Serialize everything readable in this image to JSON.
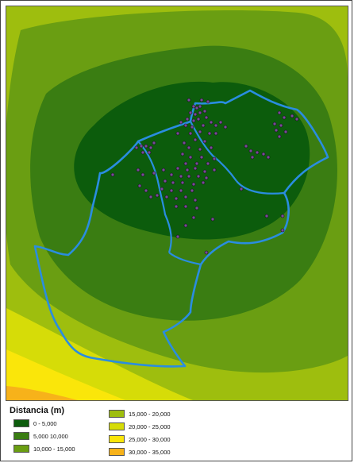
{
  "legend": {
    "title": "Distancia (m)",
    "classes": [
      {
        "label": "0 - 5,000",
        "color": "#0c5c0c"
      },
      {
        "label": "5,000   10,000",
        "color": "#3a7d12"
      },
      {
        "label": "10,000 - 15,000",
        "color": "#6a9e12"
      },
      {
        "label": "15,000 - 20,000",
        "color": "#9ebe0e"
      },
      {
        "label": "20,000 - 25,000",
        "color": "#d6dc08"
      },
      {
        "label": "25,000 - 30,000",
        "color": "#fae60a"
      },
      {
        "label": "30,000 - 35,000",
        "color": "#f7b21a"
      }
    ]
  },
  "map": {
    "boundary_color": "#2a8de0",
    "point_color": "#7a4a9a"
  }
}
